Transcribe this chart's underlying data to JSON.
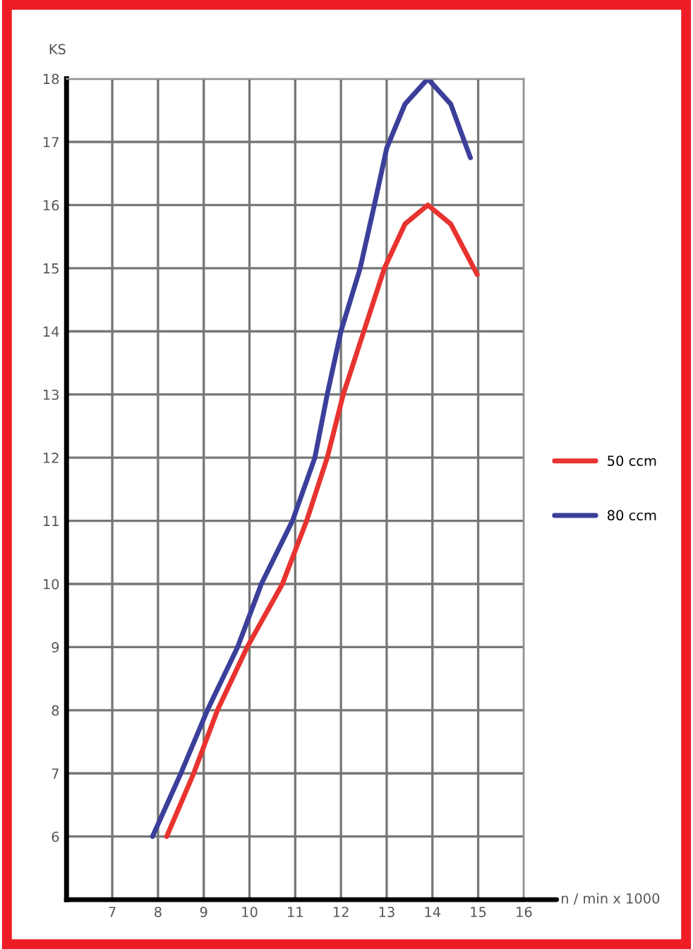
{
  "chart_data": {
    "type": "line",
    "ylabel": "KS",
    "xlabel": "n / min x 1000",
    "xlim": [
      6,
      16
    ],
    "ylim": [
      5,
      18
    ],
    "xticks": [
      7,
      8,
      9,
      10,
      11,
      12,
      13,
      14,
      15,
      16
    ],
    "yticks": [
      6,
      7,
      8,
      9,
      10,
      11,
      12,
      13,
      14,
      15,
      16,
      17,
      18
    ],
    "grid": true,
    "legend": "right",
    "marker": "none",
    "line_style": "solid",
    "series": [
      {
        "name": "50 ccm",
        "color": "#e8332f",
        "x": [
          8.19,
          8.78,
          9.3,
          9.95,
          10.72,
          11.25,
          11.7,
          12.05,
          12.5,
          12.95,
          13.4,
          13.9,
          14.4,
          14.98
        ],
        "values": [
          6,
          7,
          8,
          9,
          10,
          11,
          12,
          13,
          14,
          15,
          15.7,
          16,
          15.7,
          14.9
        ]
      },
      {
        "name": "80 ccm",
        "color": "#3b3f9a",
        "x": [
          7.88,
          8.5,
          9.08,
          9.74,
          10.26,
          10.94,
          11.43,
          11.7,
          12.0,
          12.42,
          12.73,
          13.0,
          13.4,
          13.9,
          14.4,
          14.83
        ],
        "values": [
          6,
          7,
          8,
          9,
          10,
          11,
          12,
          13,
          14,
          15,
          16,
          16.9,
          17.6,
          18,
          17.6,
          16.75
        ]
      }
    ]
  }
}
